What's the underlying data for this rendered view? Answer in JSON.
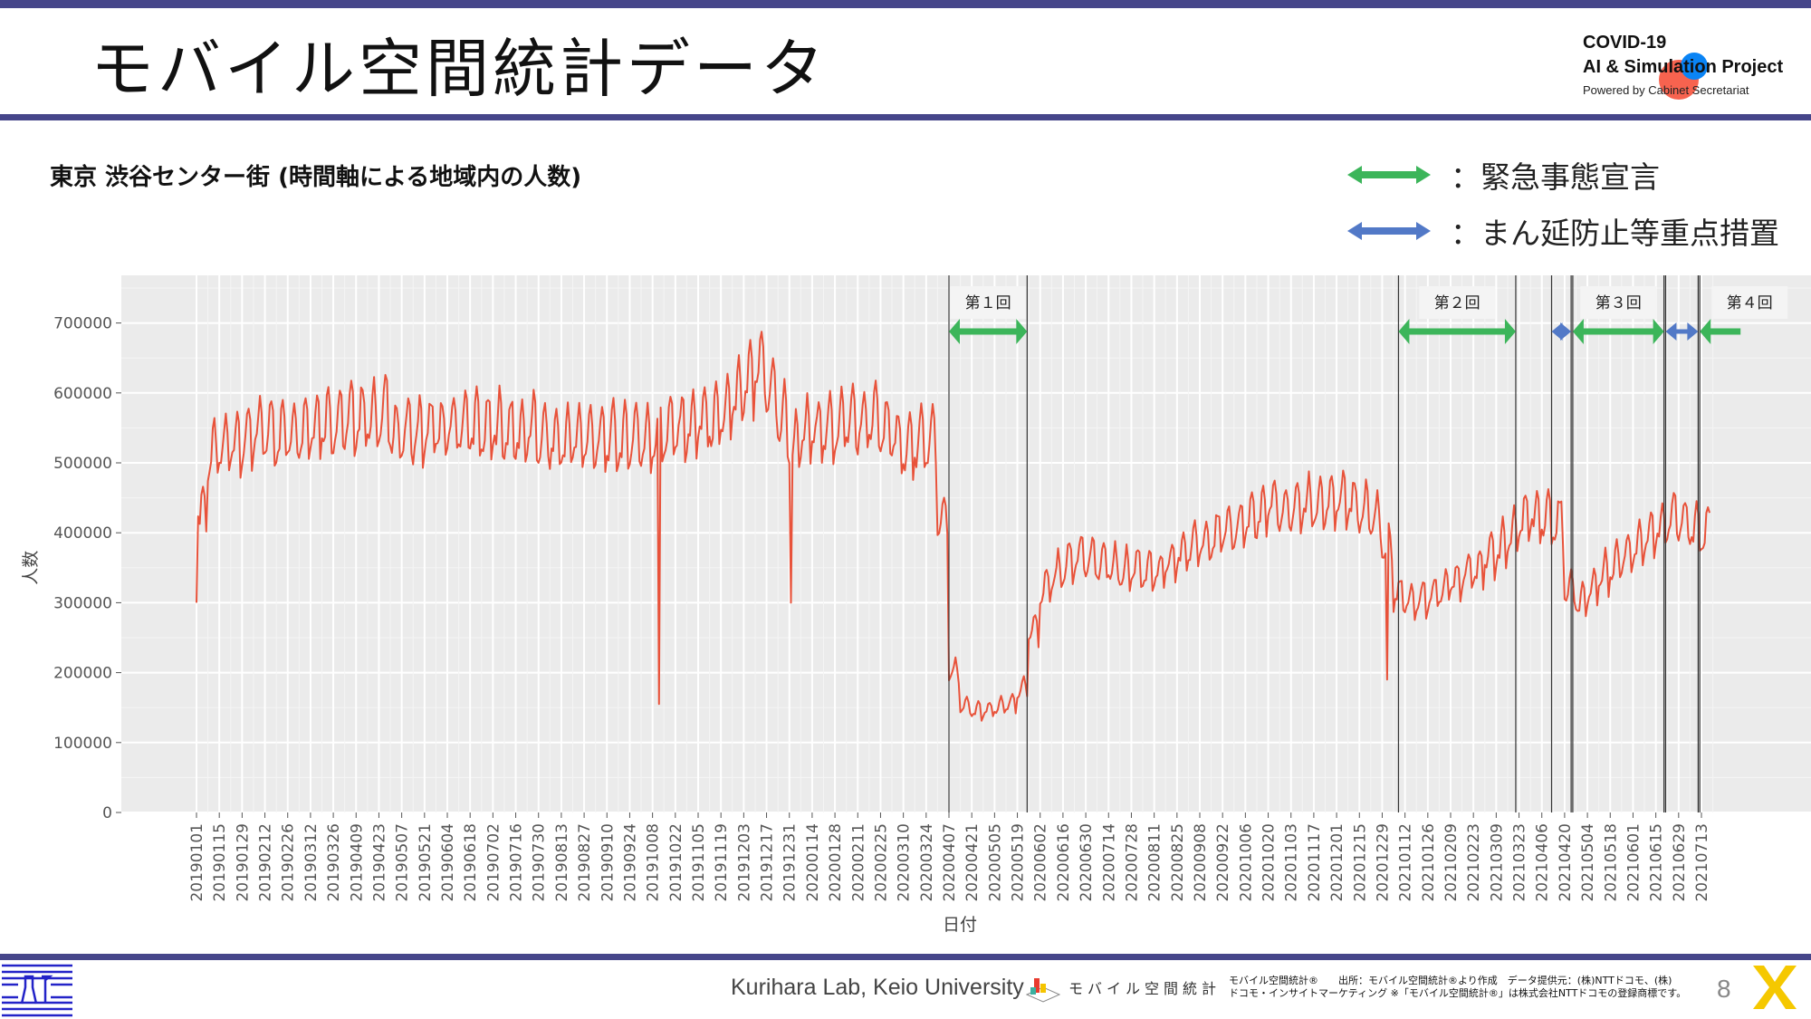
{
  "header": {
    "title": "モバイル空間統計データ",
    "logo": {
      "line1": "COVID-19",
      "line2": "AI & Simulation Project",
      "line3": "Powered by Cabinet Secretariat"
    }
  },
  "subtitle": "東京 渋谷センター街 (時間軸による地域内の人数)",
  "legend": [
    {
      "label": "：緊急事態宣言",
      "color": "#3cb55a"
    },
    {
      "label": "：まん延防止等重点措置",
      "color": "#5279c7"
    }
  ],
  "footer": {
    "lab": "Kurihara Lab, Keio University",
    "mobile_logo": "モバイル空間統計",
    "credit_line1": "モバイル空間統計®　　出所：モバイル空間統計®より作成　データ提供元：(株)NTTドコモ、(株)",
    "credit_line2": "ドコモ・インサイトマーケティング ※「モバイル空間統計®」は株式会社NTTドコモの登録商標です。",
    "page": "8"
  },
  "chart_data": {
    "type": "line",
    "xlabel": "日付",
    "ylabel": "人数",
    "ylim": [
      0,
      700000
    ],
    "yticks": [
      "0",
      "100000",
      "200000",
      "300000",
      "400000",
      "500000",
      "600000",
      "700000"
    ],
    "x_start": "2019-01-01",
    "x_step_days": 14,
    "xticks": [
      "20190101",
      "20190115",
      "20190129",
      "20190212",
      "20190226",
      "20190312",
      "20190326",
      "20190409",
      "20190423",
      "20190507",
      "20190521",
      "20190604",
      "20190618",
      "20190702",
      "20190716",
      "20190730",
      "20190813",
      "20190827",
      "20190910",
      "20190924",
      "20191008",
      "20191022",
      "20191105",
      "20191119",
      "20191203",
      "20191217",
      "20191231",
      "20200114",
      "20200128",
      "20200211",
      "20200225",
      "20200310",
      "20200324",
      "20200407",
      "20200421",
      "20200505",
      "20200519",
      "20200602",
      "20200616",
      "20200630",
      "20200714",
      "20200728",
      "20200811",
      "20200825",
      "20200908",
      "20200922",
      "20201006",
      "20201020",
      "20201103",
      "20201117",
      "20201201",
      "20201215",
      "20201229",
      "20210112",
      "20210126",
      "20210209",
      "20210223",
      "20210309",
      "20210323",
      "20210406",
      "20210420",
      "20210504",
      "20210518",
      "20210601",
      "20210615",
      "20210629",
      "20210713"
    ],
    "series": [
      {
        "name": "人数",
        "color": "#e8523a",
        "note": "weekly mean starting 2019-01-01, with weekday/weekend variation",
        "weekly_mean": [
          430000,
          510000,
          520000,
          530000,
          535000,
          540000,
          545000,
          540000,
          545000,
          550000,
          555000,
          560000,
          555000,
          560000,
          565000,
          560000,
          575000,
          540000,
          545000,
          540000,
          545000,
          545000,
          550000,
          555000,
          550000,
          545000,
          550000,
          545000,
          540000,
          545000,
          535000,
          530000,
          530000,
          535000,
          535000,
          530000,
          535000,
          530000,
          540000,
          530000,
          540000,
          545000,
          550000,
          550000,
          560000,
          555000,
          570000,
          590000,
          610000,
          640000,
          600000,
          560000,
          520000,
          540000,
          550000,
          545000,
          555000,
          560000,
          555000,
          560000,
          550000,
          530000,
          520000,
          525000,
          530000,
          420000,
          200000,
          150000,
          145000,
          145000,
          150000,
          155000,
          175000,
          260000,
          320000,
          340000,
          355000,
          370000,
          360000,
          355000,
          350000,
          345000,
          350000,
          345000,
          340000,
          355000,
          370000,
          380000,
          390000,
          395000,
          400000,
          410000,
          420000,
          425000,
          440000,
          430000,
          435000,
          440000,
          440000,
          440000,
          445000,
          440000,
          430000,
          420000,
          380000,
          310000,
          300000,
          305000,
          310000,
          320000,
          330000,
          345000,
          350000,
          365000,
          380000,
          395000,
          420000,
          425000,
          420000,
          415000,
          320000,
          300000,
          320000,
          340000,
          355000,
          370000,
          385000,
          395000,
          410000,
          420000,
          415000,
          400000
        ],
        "weekday_factor": {
          "Sun": 0.6,
          "Mon": -0.8,
          "Tue": -0.6,
          "Wed": -0.4,
          "Thu": -0.2,
          "Fri": 0.6,
          "Sat": 1.0
        },
        "amplitude_ratio": 0.09,
        "anomalies": [
          {
            "date": "2019-01-01",
            "value": 300000
          },
          {
            "date": "2019-10-12",
            "value": 155000
          },
          {
            "date": "2020-01-01",
            "value": 300000
          },
          {
            "date": "2021-01-01",
            "value": 190000
          }
        ],
        "end_date": "2021-07-18"
      }
    ],
    "periods": [
      {
        "kind": "emergency",
        "label": "第１回",
        "start": "2020-04-07",
        "end": "2020-05-25"
      },
      {
        "kind": "emergency",
        "label": "第２回",
        "start": "2021-01-08",
        "end": "2021-03-21"
      },
      {
        "kind": "priority",
        "label": "",
        "start": "2021-04-12",
        "end": "2021-04-24"
      },
      {
        "kind": "emergency",
        "label": "第３回",
        "start": "2021-04-25",
        "end": "2021-06-20"
      },
      {
        "kind": "priority",
        "label": "",
        "start": "2021-06-21",
        "end": "2021-07-11"
      },
      {
        "kind": "emergency",
        "label": "第４回",
        "start": "2021-07-12",
        "end": null
      }
    ]
  }
}
